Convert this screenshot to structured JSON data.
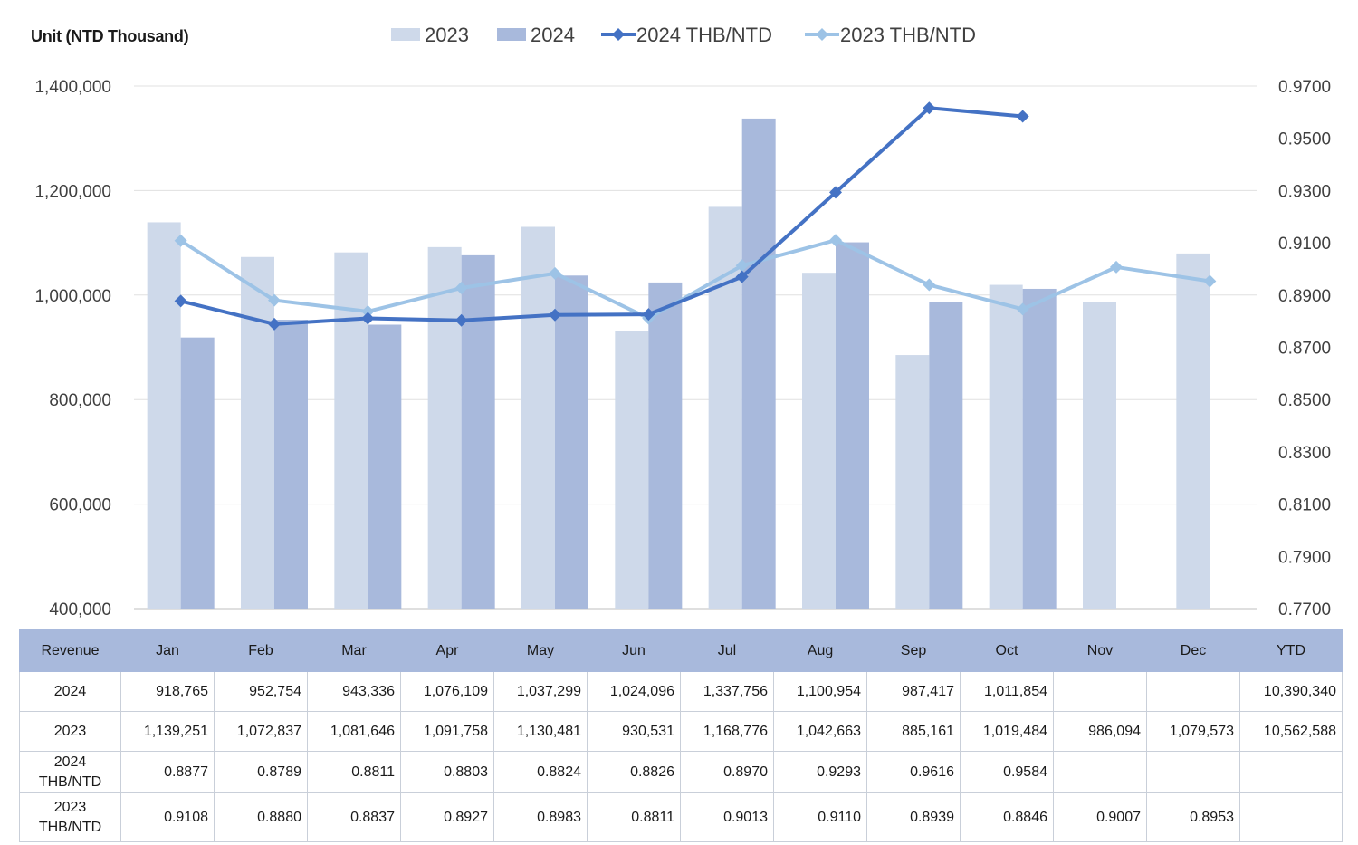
{
  "unit_label": "Unit (NTD  Thousand)",
  "colors": {
    "bar_2023": "#ced9ea",
    "bar_2024": "#a8b9dc",
    "line_2024": "#4472c4",
    "line_2023": "#9dc3e6",
    "grid": "#e0e0e0",
    "header": "#a8b9dc"
  },
  "chart_data": {
    "type": "bar",
    "categories": [
      "Jan",
      "Feb",
      "Mar",
      "Apr",
      "May",
      "Jun",
      "Jul",
      "Aug",
      "Sep",
      "Oct",
      "Nov",
      "Dec"
    ],
    "series": [
      {
        "name": "2023",
        "kind": "bar",
        "axis": "left",
        "values": [
          1139251,
          1072837,
          1081646,
          1091758,
          1130481,
          930531,
          1168776,
          1042663,
          885161,
          1019484,
          986094,
          1079573
        ]
      },
      {
        "name": "2024",
        "kind": "bar",
        "axis": "left",
        "values": [
          918765,
          952754,
          943336,
          1076109,
          1037299,
          1024096,
          1337756,
          1100954,
          987417,
          1011854,
          null,
          null
        ]
      },
      {
        "name": "2024 THB/NTD",
        "kind": "line",
        "marker": "diamond",
        "axis": "right",
        "values": [
          0.8877,
          0.8789,
          0.8811,
          0.8803,
          0.8824,
          0.8826,
          0.897,
          0.9293,
          0.9616,
          0.9584,
          null,
          null
        ]
      },
      {
        "name": "2023 THB/NTD",
        "kind": "line",
        "marker": "diamond",
        "axis": "right",
        "values": [
          0.9108,
          0.888,
          0.8837,
          0.8927,
          0.8983,
          0.8811,
          0.9013,
          0.911,
          0.8939,
          0.8846,
          0.9007,
          0.8953
        ]
      }
    ],
    "ylim": [
      400000,
      1400000
    ],
    "y_ticks": [
      "400,000",
      "600,000",
      "800,000",
      "1,000,000",
      "1,200,000",
      "1,400,000"
    ],
    "y2lim": [
      0.77,
      0.97
    ],
    "y2_ticks": [
      "0.7700",
      "0.7900",
      "0.8100",
      "0.8300",
      "0.8500",
      "0.8700",
      "0.8900",
      "0.9100",
      "0.9300",
      "0.9500",
      "0.9700"
    ],
    "grid": true,
    "legend_position": "top"
  },
  "table": {
    "headers": [
      "Revenue",
      "Jan",
      "Feb",
      "Mar",
      "Apr",
      "May",
      "Jun",
      "Jul",
      "Aug",
      "Sep",
      "Oct",
      "Nov",
      "Dec",
      "YTD"
    ],
    "rows": [
      {
        "label": "2024",
        "cells": [
          "918,765",
          "952,754",
          "943,336",
          "1,076,109",
          "1,037,299",
          "1,024,096",
          "1,337,756",
          "1,100,954",
          "987,417",
          "1,011,854",
          "",
          "",
          "10,390,340"
        ]
      },
      {
        "label": "2023",
        "cells": [
          "1,139,251",
          "1,072,837",
          "1,081,646",
          "1,091,758",
          "1,130,481",
          "930,531",
          "1,168,776",
          "1,042,663",
          "885,161",
          "1,019,484",
          "986,094",
          "1,079,573",
          "10,562,588"
        ]
      },
      {
        "label": "2024 THB/NTD",
        "cells": [
          "0.8877",
          "0.8789",
          "0.8811",
          "0.8803",
          "0.8824",
          "0.8826",
          "0.8970",
          "0.9293",
          "0.9616",
          "0.9584",
          "",
          "",
          ""
        ]
      },
      {
        "label": "2023 THB/NTD",
        "cells": [
          "0.9108",
          "0.8880",
          "0.8837",
          "0.8927",
          "0.8983",
          "0.8811",
          "0.9013",
          "0.9110",
          "0.8939",
          "0.8846",
          "0.9007",
          "0.8953",
          ""
        ]
      }
    ]
  }
}
